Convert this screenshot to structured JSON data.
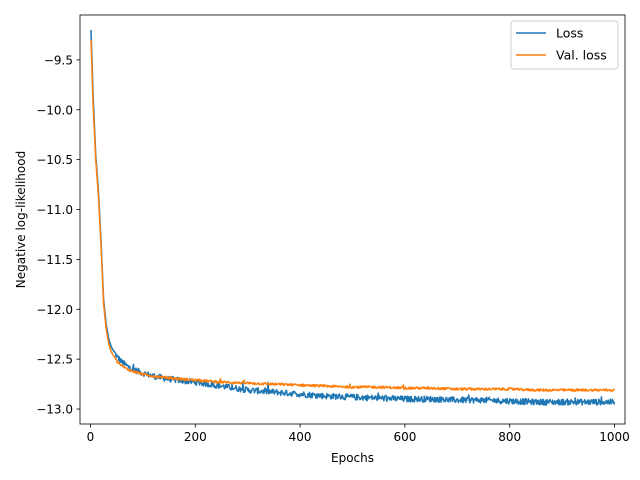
{
  "chart_data": {
    "type": "line",
    "title": "",
    "xlabel": "Epochs",
    "ylabel": "Negative log-likelihood",
    "xlim": [
      -20,
      1020
    ],
    "ylim": [
      -13.15,
      -9.05
    ],
    "xticks": [
      0,
      200,
      400,
      600,
      800,
      1000
    ],
    "xtick_labels": [
      "0",
      "200",
      "400",
      "600",
      "800",
      "1000"
    ],
    "yticks": [
      -9.5,
      -10.0,
      -10.5,
      -11.0,
      -11.5,
      -12.0,
      -12.5,
      -13.0
    ],
    "ytick_labels": [
      "−9.5",
      "−10.0",
      "−10.5",
      "−11.0",
      "−11.5",
      "−12.0",
      "−12.5",
      "−13.0"
    ],
    "grid": false,
    "legend_position": "top-right",
    "series": [
      {
        "name": "Loss",
        "color": "#1f77b4",
        "noise": "high",
        "x": [
          1,
          5,
          10,
          15,
          20,
          25,
          30,
          35,
          40,
          50,
          60,
          70,
          80,
          100,
          120,
          150,
          200,
          250,
          300,
          350,
          400,
          450,
          500,
          550,
          600,
          650,
          700,
          750,
          800,
          850,
          900,
          950,
          1000
        ],
        "y": [
          -9.2,
          -9.85,
          -10.45,
          -10.8,
          -11.3,
          -11.9,
          -12.15,
          -12.3,
          -12.38,
          -12.47,
          -12.53,
          -12.57,
          -12.6,
          -12.64,
          -12.67,
          -12.7,
          -12.73,
          -12.77,
          -12.81,
          -12.83,
          -12.85,
          -12.87,
          -12.88,
          -12.89,
          -12.9,
          -12.9,
          -12.91,
          -12.91,
          -12.92,
          -12.93,
          -12.93,
          -12.93,
          -12.93
        ]
      },
      {
        "name": "Val. loss",
        "color": "#ff7f0e",
        "noise": "low",
        "x": [
          1,
          5,
          10,
          15,
          20,
          25,
          30,
          35,
          40,
          50,
          60,
          70,
          80,
          100,
          120,
          150,
          200,
          250,
          300,
          350,
          400,
          450,
          500,
          550,
          600,
          650,
          700,
          750,
          800,
          850,
          900,
          950,
          1000
        ],
        "y": [
          -9.3,
          -9.95,
          -10.5,
          -10.85,
          -11.35,
          -11.95,
          -12.2,
          -12.35,
          -12.43,
          -12.52,
          -12.57,
          -12.6,
          -12.62,
          -12.65,
          -12.67,
          -12.69,
          -12.71,
          -12.73,
          -12.74,
          -12.75,
          -12.76,
          -12.77,
          -12.78,
          -12.78,
          -12.79,
          -12.79,
          -12.8,
          -12.8,
          -12.8,
          -12.81,
          -12.81,
          -12.81,
          -12.81
        ]
      }
    ]
  }
}
